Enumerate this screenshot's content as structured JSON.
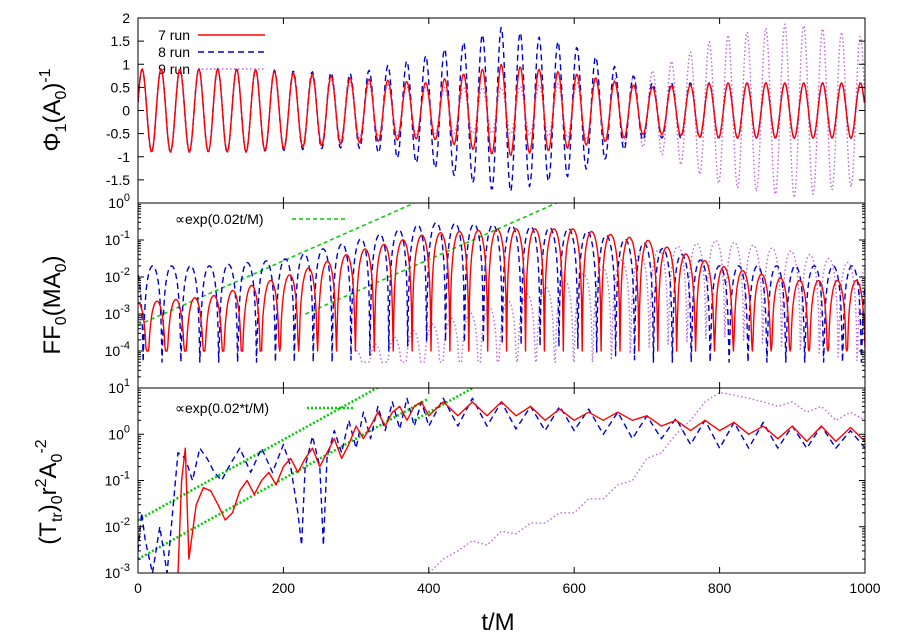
{
  "chart_data": [
    {
      "type": "line",
      "panel": "top",
      "xlabel": "",
      "ylabel": "Φ1(A0)^-1",
      "ylabel_parts": {
        "base": "Φ",
        "sub1": "1",
        "mid": "(A",
        "sub2": "0",
        "tail": ")",
        "sup": "-1"
      },
      "xlim": [
        0,
        1000
      ],
      "ylim": [
        -2,
        2
      ],
      "yscale": "linear",
      "x_ticks": [
        0,
        200,
        400,
        600,
        800,
        1000
      ],
      "y_ticks": [
        -1.5,
        -1,
        -0.5,
        0,
        0.5,
        1,
        1.5,
        2
      ],
      "y_tick_labels": [
        "-1.5",
        "-1",
        "-0.5",
        "0",
        "0.5",
        "1",
        "1.5",
        "2"
      ],
      "legend_position": "top-left",
      "series": [
        {
          "name": "7 run",
          "color": "#ff0000",
          "style": "solid",
          "form": "oscillation",
          "period": 26,
          "amplitude_x": [
            0,
            150,
            300,
            400,
            500,
            600,
            700,
            800,
            900,
            1000
          ],
          "amplitude_y": [
            0.9,
            0.9,
            0.7,
            0.6,
            1.0,
            0.8,
            0.5,
            0.6,
            0.6,
            0.6
          ]
        },
        {
          "name": "8 run",
          "color": "#0000cc",
          "style": "dashed",
          "form": "oscillation",
          "period": 26,
          "amplitude_x": [
            0,
            150,
            300,
            400,
            500,
            600,
            700,
            800,
            900,
            1000
          ],
          "amplitude_y": [
            0.9,
            0.9,
            0.8,
            1.2,
            1.8,
            1.4,
            0.6,
            0.6,
            0.6,
            0.6
          ]
        },
        {
          "name": "9 run",
          "color": "#bb66dd",
          "style": "dotted",
          "form": "oscillation",
          "period": 26,
          "amplitude_x": [
            0,
            150,
            300,
            400,
            500,
            600,
            700,
            800,
            900,
            1000
          ],
          "amplitude_y": [
            0.9,
            0.9,
            0.6,
            0.5,
            0.5,
            0.6,
            0.8,
            1.6,
            1.9,
            1.6
          ]
        }
      ]
    },
    {
      "type": "line",
      "panel": "middle",
      "xlabel": "",
      "ylabel": "FF0(MA0)",
      "ylabel_parts": {
        "base": "FF",
        "sub1": "0",
        "tail": "(MA",
        "sub2": "0",
        "end": ")"
      },
      "xlim": [
        0,
        1000
      ],
      "ylim": [
        1e-05,
        1
      ],
      "yscale": "log",
      "x_ticks": [
        0,
        200,
        400,
        600,
        800,
        1000
      ],
      "y_tick_labels": [
        {
          "value": 0.0001,
          "base": "10",
          "exp": "-4"
        },
        {
          "value": 0.001,
          "base": "10",
          "exp": "-3"
        },
        {
          "value": 0.01,
          "base": "10",
          "exp": "-2"
        },
        {
          "value": 0.1,
          "base": "10",
          "exp": "-1"
        },
        {
          "value": 1,
          "base": "10",
          "exp": "0"
        }
      ],
      "annotation": "∝exp(0.02t/M)",
      "reference_lines": [
        {
          "color": "#00cc00",
          "style": "dashed",
          "slope": 0.02,
          "x": [
            0,
            420
          ],
          "y_at_x0": 0.0005
        },
        {
          "color": "#00cc00",
          "style": "dashed",
          "slope": 0.02,
          "x": [
            230,
            830
          ],
          "y_at_x0": 1e-05
        }
      ],
      "series": [
        {
          "name": "7 run",
          "color": "#ff0000",
          "style": "solid",
          "form": "log-oscillation",
          "period": 26,
          "peak_x": [
            0,
            100,
            200,
            300,
            400,
            500,
            600,
            700,
            800,
            900,
            1000
          ],
          "peak_y": [
            0.002,
            0.003,
            0.01,
            0.05,
            0.15,
            0.2,
            0.2,
            0.1,
            0.02,
            0.008,
            0.008
          ],
          "dip": 0.0001
        },
        {
          "name": "8 run",
          "color": "#0000cc",
          "style": "dashed",
          "form": "log-oscillation",
          "period": 26,
          "peak_x": [
            0,
            100,
            200,
            300,
            400,
            500,
            600,
            700,
            800,
            900,
            1000
          ],
          "peak_y": [
            0.02,
            0.02,
            0.03,
            0.1,
            0.3,
            0.25,
            0.2,
            0.08,
            0.02,
            0.02,
            0.02
          ],
          "dip": 5e-05
        },
        {
          "name": "9 run",
          "color": "#bb66dd",
          "style": "dotted",
          "form": "log-oscillation",
          "period": 26,
          "peak_x": [
            300,
            400,
            500,
            600,
            700,
            800,
            900,
            1000
          ],
          "peak_y": [
            0.0001,
            0.0005,
            0.002,
            0.01,
            0.05,
            0.1,
            0.05,
            0.02
          ],
          "dip": 5e-05
        }
      ]
    },
    {
      "type": "line",
      "panel": "bottom",
      "xlabel": "t/M",
      "ylabel": "(Ttr)0r^2A0^-2",
      "ylabel_parts": {
        "open": "(T",
        "sub1": "tr",
        "mid": ")",
        "sub2": "0",
        "r": "r",
        "sup1": "2",
        "a": "A",
        "sub3": "0",
        "sup2": "-2"
      },
      "xlim": [
        0,
        1000
      ],
      "ylim": [
        0.001,
        10
      ],
      "yscale": "log",
      "x_ticks": [
        0,
        200,
        400,
        600,
        800,
        1000
      ],
      "x_tick_labels": [
        "0",
        "200",
        "400",
        "600",
        "800",
        "1000"
      ],
      "y_tick_labels": [
        {
          "value": 0.001,
          "base": "10",
          "exp": "-3"
        },
        {
          "value": 0.01,
          "base": "10",
          "exp": "-2"
        },
        {
          "value": 0.1,
          "base": "10",
          "exp": "-1"
        },
        {
          "value": 1,
          "base": "10",
          "exp": "0"
        },
        {
          "value": 10,
          "base": "10",
          "exp": "1"
        }
      ],
      "annotation": "∝exp(0.02*t/M)",
      "reference_lines": [
        {
          "color": "#00cc00",
          "style": "dotted",
          "slope": 0.02,
          "x": [
            0,
            360
          ],
          "y_at_x0": 0.014
        },
        {
          "color": "#00cc00",
          "style": "dotted",
          "slope": 0.02,
          "x": [
            0,
            400
          ],
          "y_at_x0": 0.002
        },
        {
          "color": "#00cc00",
          "style": "dotted",
          "slope": 0.02,
          "x": [
            380,
            740
          ],
          "y_at_x0": 0.001
        }
      ],
      "series": [
        {
          "name": "7 run",
          "color": "#ff0000",
          "style": "solid",
          "form": "curve",
          "x": [
            55,
            60,
            65,
            70,
            80,
            90,
            100,
            110,
            120,
            130,
            140,
            150,
            160,
            170,
            180,
            190,
            200,
            210,
            220,
            230,
            240,
            250,
            260,
            270,
            280,
            290,
            300,
            310,
            320,
            330,
            340,
            350,
            360,
            370,
            380,
            390,
            400,
            420,
            440,
            460,
            480,
            500,
            520,
            540,
            560,
            580,
            600,
            620,
            640,
            660,
            680,
            700,
            720,
            740,
            760,
            780,
            800,
            820,
            840,
            860,
            880,
            900,
            920,
            940,
            960,
            980,
            1000
          ],
          "y": [
            0.001,
            0.1,
            0.5,
            0.002,
            0.03,
            0.07,
            0.06,
            0.03,
            0.014,
            0.02,
            0.06,
            0.1,
            0.05,
            0.1,
            0.15,
            0.08,
            0.2,
            0.3,
            0.15,
            0.3,
            0.5,
            0.2,
            0.4,
            0.8,
            0.3,
            0.6,
            1.5,
            0.8,
            1.5,
            3,
            1.5,
            3,
            4,
            2,
            4,
            5,
            2.5,
            5,
            2.5,
            5,
            2.5,
            5,
            2.5,
            4,
            2,
            3.5,
            2,
            3,
            2,
            3,
            2,
            2.5,
            1.5,
            2,
            1.2,
            2,
            1.2,
            1.8,
            1,
            1.5,
            0.8,
            1.5,
            0.7,
            1.5,
            0.7,
            1.4,
            0.7
          ]
        },
        {
          "name": "8 run",
          "color": "#0000cc",
          "style": "dashed",
          "form": "curve",
          "x": [
            0,
            5,
            10,
            20,
            30,
            40,
            55,
            65,
            75,
            85,
            95,
            105,
            115,
            125,
            140,
            155,
            170,
            185,
            200,
            210,
            220,
            225,
            230,
            240,
            250,
            255,
            260,
            270,
            280,
            290,
            300,
            310,
            320,
            330,
            340,
            350,
            360,
            370,
            380,
            390,
            400,
            420,
            440,
            460,
            480,
            500,
            520,
            540,
            560,
            580,
            600,
            620,
            640,
            660,
            680,
            700,
            720,
            740,
            760,
            780,
            800,
            820,
            840,
            860,
            880,
            900,
            920,
            940,
            960,
            980,
            1000
          ],
          "y": [
            0.003,
            0.02,
            0.005,
            0.001,
            0.01,
            0.001,
            0.4,
            0.3,
            0.1,
            0.5,
            0.3,
            0.15,
            0.1,
            0.2,
            0.5,
            0.15,
            0.5,
            0.15,
            0.6,
            0.2,
            0.02,
            0.004,
            0.2,
            0.9,
            0.2,
            0.004,
            0.3,
            1.2,
            0.4,
            2,
            0.5,
            3,
            0.8,
            4,
            1.2,
            5,
            1.3,
            6,
            1.5,
            5,
            1.5,
            6,
            1.5,
            6,
            1.5,
            5,
            1.3,
            4,
            1.2,
            4,
            1.2,
            3.5,
            1,
            3,
            0.8,
            2.5,
            0.8,
            2.2,
            0.6,
            2,
            0.5,
            1.8,
            0.5,
            1.8,
            0.5,
            1.5,
            0.5,
            1.5,
            0.5,
            1.2,
            0.5
          ]
        },
        {
          "name": "9 run",
          "color": "#bb66dd",
          "style": "dotted",
          "form": "curve",
          "x": [
            400,
            420,
            440,
            460,
            480,
            500,
            520,
            540,
            560,
            580,
            600,
            620,
            640,
            660,
            680,
            700,
            720,
            740,
            760,
            780,
            800,
            820,
            840,
            860,
            880,
            900,
            920,
            940,
            960,
            980,
            1000
          ],
          "y": [
            0.001,
            0.002,
            0.003,
            0.005,
            0.004,
            0.008,
            0.007,
            0.012,
            0.012,
            0.02,
            0.02,
            0.04,
            0.04,
            0.08,
            0.1,
            0.3,
            0.4,
            1,
            2,
            5,
            8,
            7,
            6,
            5,
            4,
            5,
            3,
            4,
            2,
            3,
            2
          ]
        }
      ]
    }
  ],
  "legend": [
    {
      "label": "7 run",
      "color": "#ff0000",
      "style": "solid"
    },
    {
      "label": "8 run",
      "color": "#0000cc",
      "style": "dashed"
    },
    {
      "label": "9 run",
      "color": "#bb66dd",
      "style": "dotted"
    }
  ]
}
